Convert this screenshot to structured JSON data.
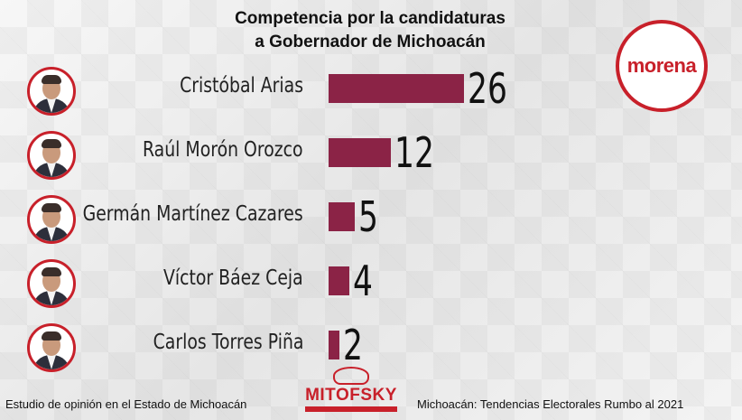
{
  "title_line1": "Competencia por la candidaturas",
  "title_line2": "a Gobernador de Michoacán",
  "logo_text": "morena",
  "brand_text": "MITOFSKY",
  "footer_left": "Estudio de opinión en el Estado de Michoacán",
  "footer_right": "Michoacán: Tendencias Electorales Rumbo al 2021",
  "colors": {
    "bar": "#8b2346",
    "accent": "#c8202a"
  },
  "chart_data": {
    "type": "bar",
    "orientation": "horizontal",
    "categories": [
      "Cristóbal Arias",
      "Raúl Morón Orozco",
      "Germán Martínez Cazares",
      "Víctor Báez Ceja",
      "Carlos Torres Piña"
    ],
    "values": [
      26,
      12,
      5,
      4,
      2
    ],
    "value_labels": [
      "26",
      "12",
      "5",
      "4",
      "2"
    ],
    "xlim": [
      0,
      26
    ]
  }
}
